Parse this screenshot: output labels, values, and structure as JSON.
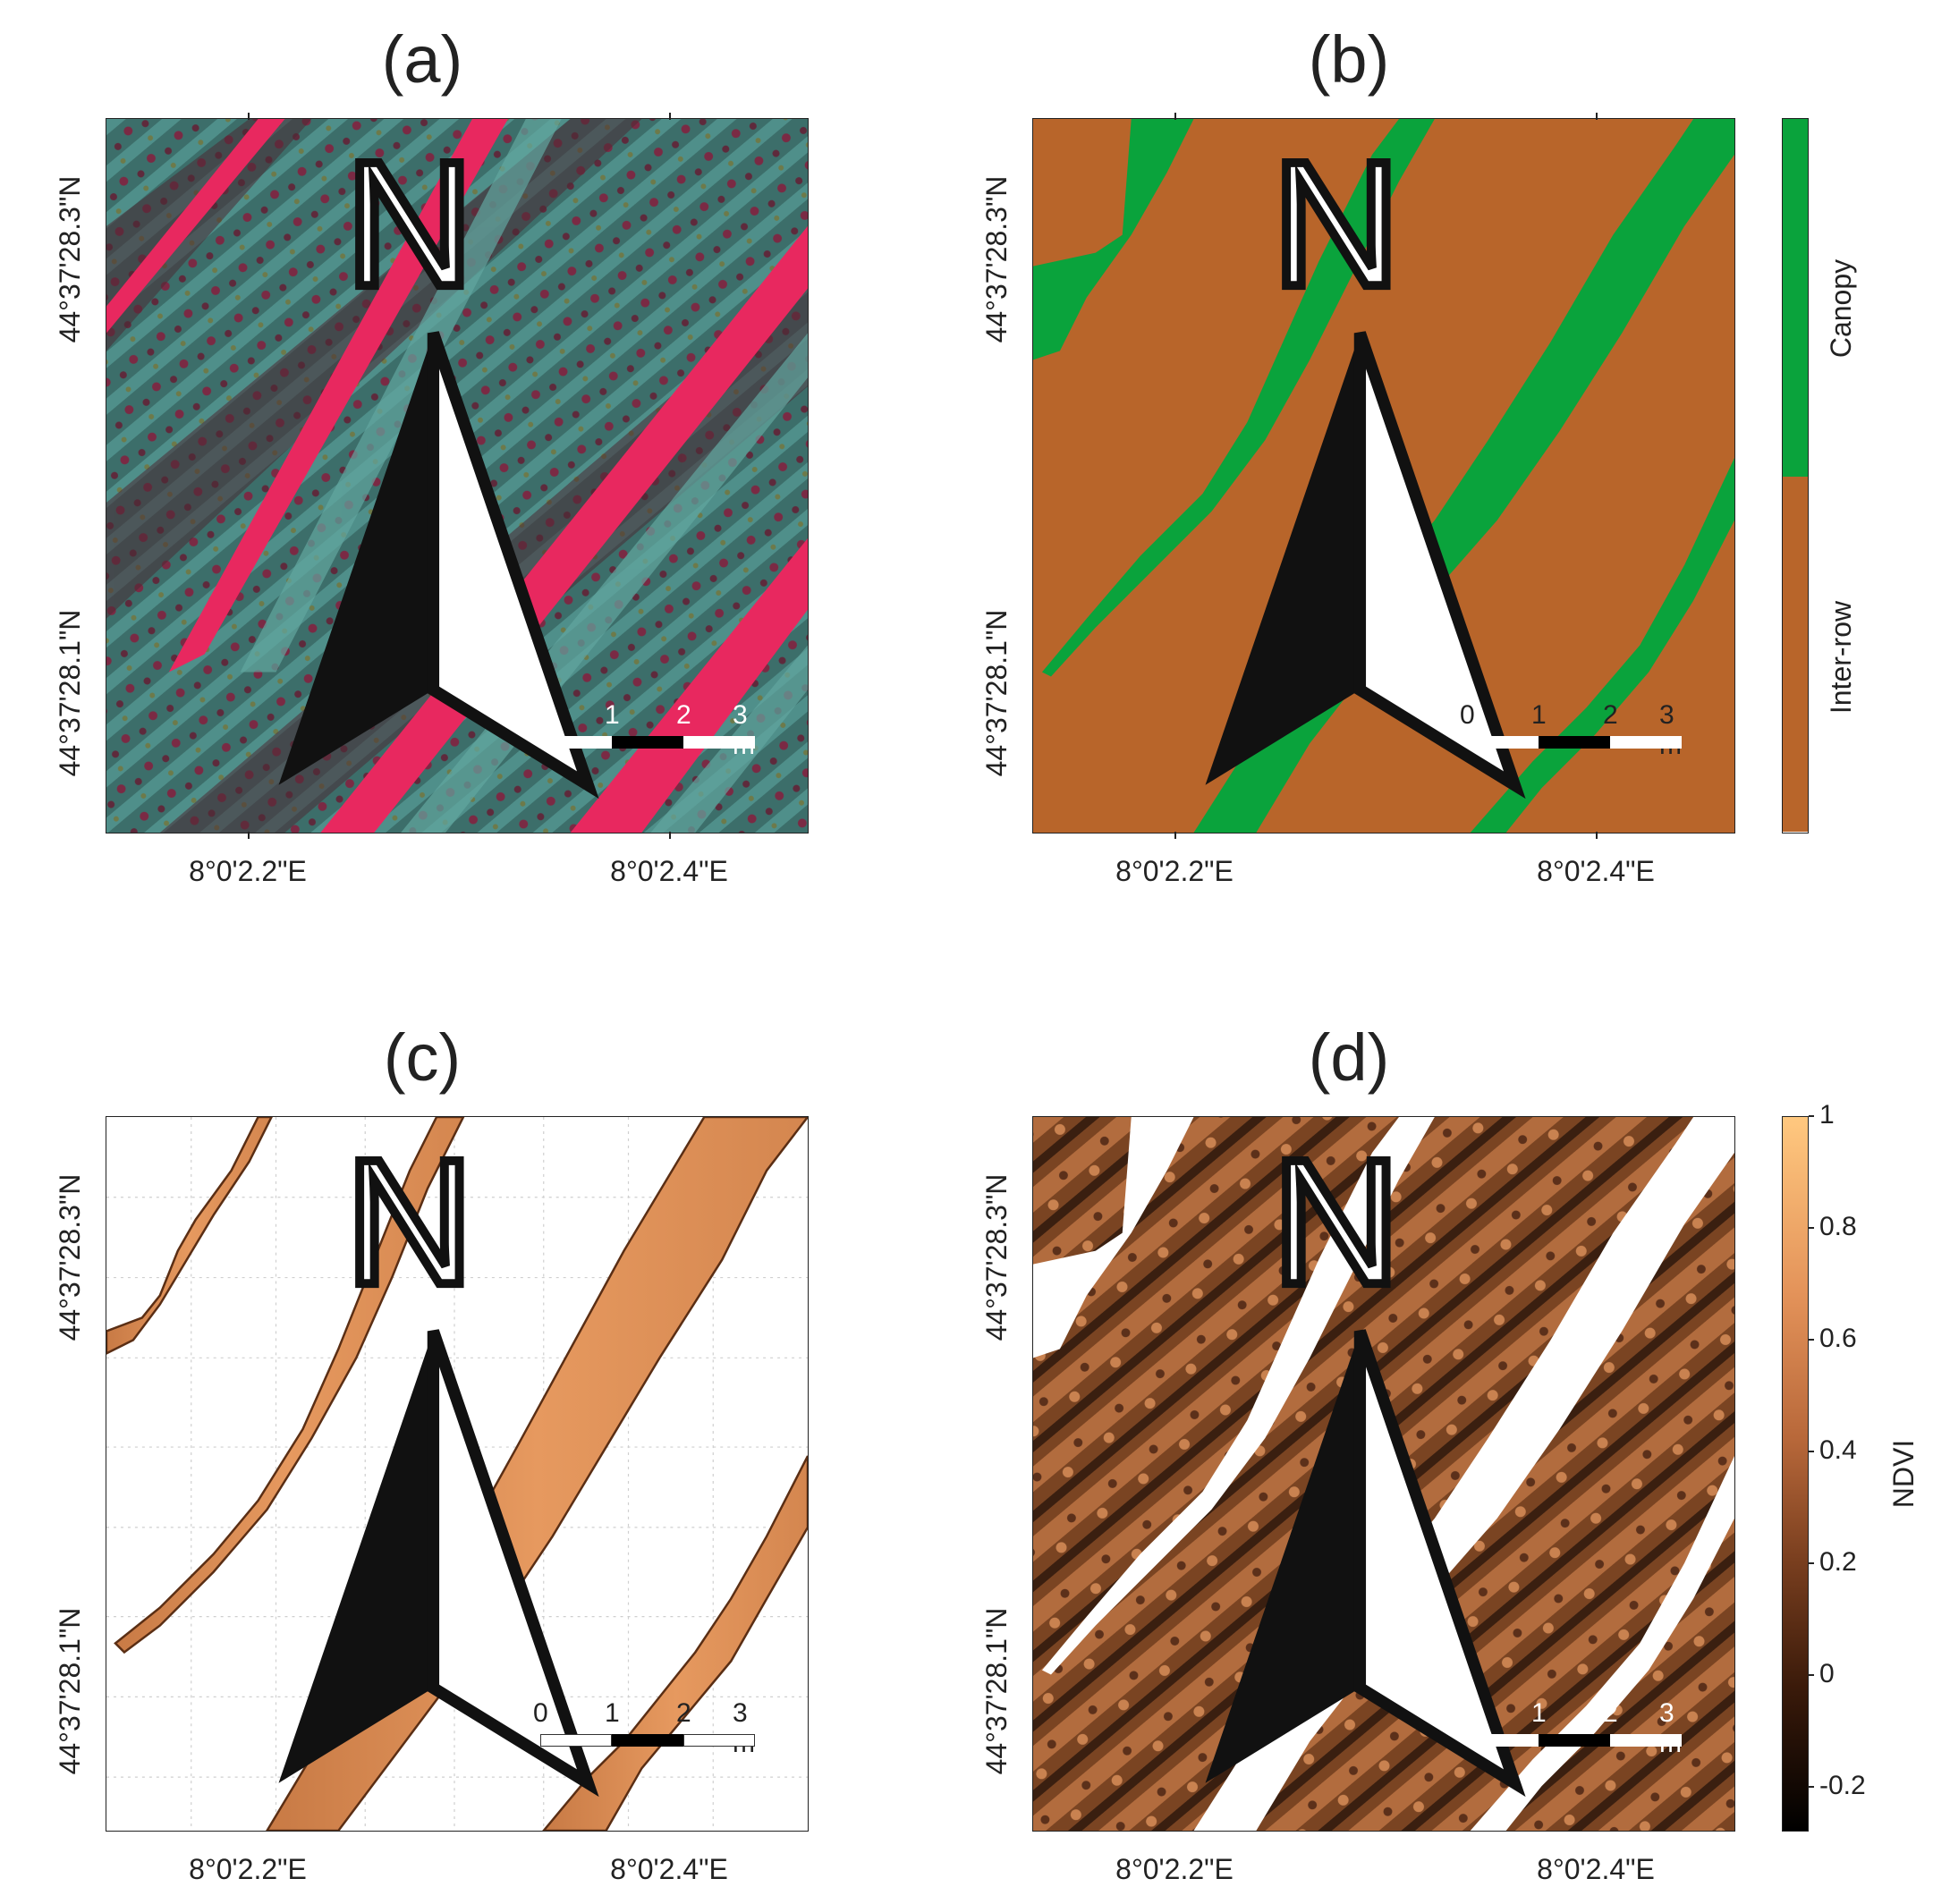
{
  "panels": [
    {
      "id": "a",
      "title": "(a)",
      "kind": "false-color composite"
    },
    {
      "id": "b",
      "title": "(b)",
      "kind": "canopy / inter-row classification"
    },
    {
      "id": "c",
      "title": "(c)",
      "kind": "canopy NDVI"
    },
    {
      "id": "d",
      "title": "(d)",
      "kind": "inter-row NDVI"
    }
  ],
  "axes": {
    "lon_ticks": [
      "8°0'2.2\"E",
      "8°0'2.4\"E"
    ],
    "lat_ticks": [
      "44°37'28.3\"N",
      "44°37'28.1\"N"
    ]
  },
  "north_arrow": {
    "label": "N",
    "icon": "north-arrow-icon"
  },
  "scale_bar": {
    "labels": [
      "0",
      "1",
      "2",
      "3 m"
    ]
  },
  "legend_b": {
    "classes": [
      {
        "name": "Canopy",
        "color": "#0aa33c"
      },
      {
        "name": "Inter-row",
        "color": "#b8652a"
      }
    ]
  },
  "colorbar_d": {
    "label": "NDVI",
    "min": -0.28,
    "max": 1.0,
    "ticks": [
      "1",
      "0.8",
      "0.6",
      "0.4",
      "0.2",
      "0",
      "-0.2"
    ],
    "tick_values": [
      1,
      0.8,
      0.6,
      0.4,
      0.2,
      0,
      -0.2
    ]
  },
  "colors": {
    "canopy_green": "#0aa33c",
    "soil_brown": "#b8652a",
    "ndvi_orange": "#e0905a",
    "canopy_magenta": "#e82a62"
  }
}
